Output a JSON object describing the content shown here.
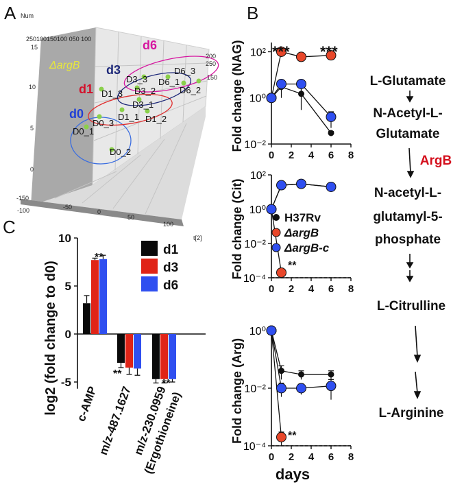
{
  "panels": {
    "A": "A",
    "B": "B",
    "C": "C"
  },
  "panel_a": {
    "axis_num": "Num",
    "axis_t2": "t[2]",
    "back_top_ticks": "250100150100 050 100",
    "strain": "ΔargB",
    "z_ticks": [
      "15",
      "10",
      "5",
      "0"
    ],
    "bottom_ticks": [
      "-150",
      "-100",
      "-50",
      "0",
      "50",
      "100"
    ],
    "right_ticks": [
      "-100",
      "-50",
      "0",
      "50",
      "100",
      "150",
      "200",
      "250"
    ],
    "groups": [
      {
        "name": "d0",
        "color": "#1f3fd6"
      },
      {
        "name": "d1",
        "color": "#d4102a"
      },
      {
        "name": "d3",
        "color": "#1f2a7a"
      },
      {
        "name": "d6",
        "color": "#d616a0"
      }
    ],
    "points": [
      "D0_1",
      "D0_2",
      "D0_3",
      "D1_1",
      "D1_2",
      "D1_3",
      "D3_1",
      "D3_2",
      "D3_3",
      "D6_1",
      "D6_2",
      "D6_3"
    ]
  },
  "panel_b": {
    "xlabel": "days",
    "x_ticks": [
      "0",
      "2",
      "4",
      "6",
      "8"
    ],
    "subplots": [
      {
        "ylabel": "Fold change (NAG)",
        "y_ticks": [
          "10²",
          "10⁰",
          "10⁻²"
        ],
        "stars": [
          "***",
          "***"
        ]
      },
      {
        "ylabel": "Fold change (Cit)",
        "y_ticks": [
          "10²",
          "10⁰",
          "10⁻²",
          "10⁻⁴"
        ],
        "stars": [
          "**"
        ]
      },
      {
        "ylabel": "Fold change (Arg)",
        "y_ticks": [
          "10⁰",
          "10⁻²",
          "10⁻⁴"
        ],
        "stars": [
          "**"
        ]
      }
    ],
    "legend": [
      {
        "label": "H37Rv",
        "color": "#111111"
      },
      {
        "label": "ΔargB",
        "color": "#e8472a"
      },
      {
        "label": "ΔargB-c",
        "color": "#2f4ff0"
      }
    ]
  },
  "pathway": {
    "steps": [
      "L-Glutamate",
      "N-Acetyl-L-",
      "Glutamate",
      "N-acetyl-L-",
      "glutamyl-5-",
      "phosphate",
      "L-Citrulline",
      "L-Arginine"
    ],
    "enzyme": "ArgB",
    "enzyme_color": "#d40f1c"
  },
  "chart_data": [
    {
      "type": "line",
      "panel": "B",
      "title": "",
      "xlabel": "days",
      "ylabel": "Fold change (NAG)",
      "yscale": "log",
      "ylim": [
        0.01,
        300
      ],
      "xlim": [
        0,
        8
      ],
      "x": [
        0,
        1,
        3,
        6
      ],
      "series": [
        {
          "name": "H37Rv",
          "color": "#111111",
          "values": [
            1,
            3,
            1.5,
            0.03
          ],
          "err": [
            0,
            2,
            1.2,
            0.005
          ]
        },
        {
          "name": "ΔargB",
          "color": "#e8472a",
          "values": [
            1,
            100,
            60,
            70
          ],
          "err": [
            0,
            10,
            8,
            8
          ]
        },
        {
          "name": "ΔargB-c",
          "color": "#2f4ff0",
          "values": [
            1,
            4,
            4,
            0.15
          ],
          "err": [
            0,
            2,
            2,
            0.1
          ]
        }
      ],
      "annotations": [
        "***",
        "***"
      ]
    },
    {
      "type": "line",
      "panel": "B",
      "title": "",
      "xlabel": "days",
      "ylabel": "Fold change (Cit)",
      "yscale": "log",
      "ylim": [
        0.0001,
        100
      ],
      "xlim": [
        0,
        8
      ],
      "x": [
        0,
        1,
        3,
        6
      ],
      "series": [
        {
          "name": "H37Rv",
          "color": "#111111",
          "values": [
            1,
            25,
            30,
            20
          ],
          "err": [
            0,
            3,
            3,
            3
          ]
        },
        {
          "name": "ΔargB",
          "color": "#e8472a",
          "values": [
            1,
            0.0002
          ],
          "x": [
            0,
            1
          ],
          "err": [
            0,
            0.0001
          ]
        },
        {
          "name": "ΔargB-c",
          "color": "#2f4ff0",
          "values": [
            1,
            25,
            30,
            20
          ],
          "err": [
            0,
            3,
            3,
            3
          ]
        }
      ],
      "reference_line": 0.0001,
      "annotations": [
        "**"
      ]
    },
    {
      "type": "line",
      "panel": "B",
      "title": "",
      "xlabel": "days",
      "ylabel": "Fold change (Arg)",
      "yscale": "log",
      "ylim": [
        0.0001,
        1
      ],
      "xlim": [
        0,
        8
      ],
      "x": [
        0,
        1,
        3,
        6
      ],
      "series": [
        {
          "name": "H37Rv",
          "color": "#111111",
          "values": [
            1,
            0.04,
            0.03,
            0.03
          ],
          "err": [
            0,
            0.02,
            0.01,
            0.01
          ]
        },
        {
          "name": "ΔargB",
          "color": "#e8472a",
          "values": [
            1,
            0.0002
          ],
          "x": [
            0,
            1
          ],
          "err": [
            0,
            0.0001
          ]
        },
        {
          "name": "ΔargB-c",
          "color": "#2f4ff0",
          "values": [
            1,
            0.01,
            0.01,
            0.012
          ],
          "err": [
            0,
            0.005,
            0.004,
            0.008
          ]
        }
      ],
      "reference_line": 0.0001,
      "annotations": [
        "**"
      ]
    },
    {
      "type": "bar",
      "panel": "C",
      "title": "",
      "ylabel": "log2 (fold change to d0)",
      "ylim": [
        -6,
        10
      ],
      "y_ticks": [
        10,
        5,
        0,
        -5
      ],
      "categories": [
        "c-AMP",
        "m/z-487.1627",
        "m/z-230.0959 (Ergothioneine)"
      ],
      "series": [
        {
          "name": "d1",
          "color": "#0a0a0a",
          "values": [
            3.2,
            -3.0,
            -4.7
          ],
          "err": [
            0.8,
            0.5,
            0.4
          ]
        },
        {
          "name": "d3",
          "color": "#e02417",
          "values": [
            7.7,
            -3.5,
            -4.7
          ],
          "err": [
            0.2,
            0.7,
            0.4
          ]
        },
        {
          "name": "d6",
          "color": "#2f4ff0",
          "values": [
            7.8,
            -3.6,
            -4.7
          ],
          "err": [
            0.4,
            0.7,
            0.3
          ]
        }
      ],
      "annotations": [
        "**",
        "**",
        "**"
      ],
      "legend_position": "top-right"
    }
  ]
}
